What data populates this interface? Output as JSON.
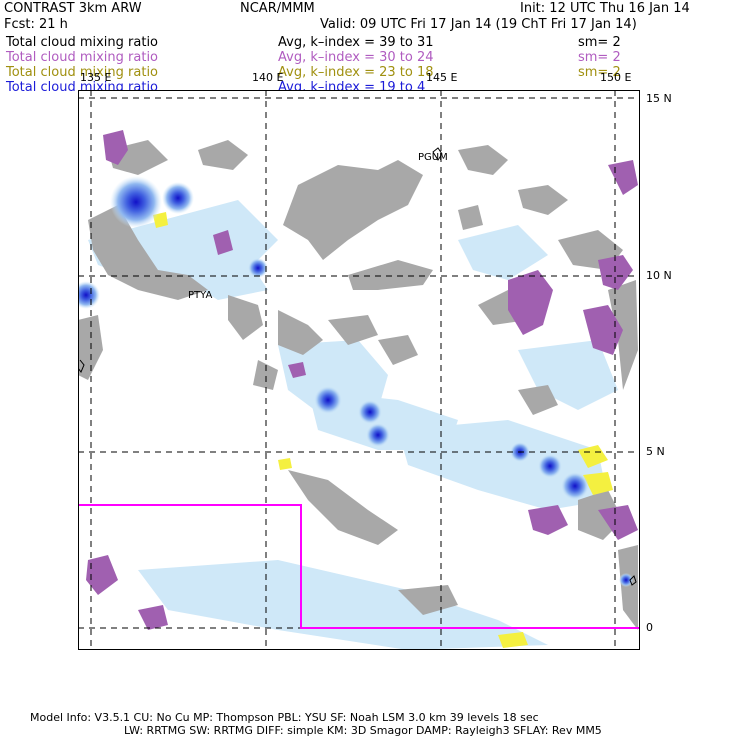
{
  "header": {
    "model": "CONTRAST  3km ARW",
    "center": "NCAR/MMM",
    "init": "Init: 12 UTC Thu 16 Jan 14",
    "fcst": "Fcst:    21 h",
    "valid": "Valid: 09 UTC Fri 17 Jan 14 (19 ChT Fri 17 Jan 14)"
  },
  "fields": [
    {
      "name": "Total cloud mixing ratio",
      "avg": "Avg, k–index =   39  to   31",
      "sm": "sm= 2",
      "color": "#000000"
    },
    {
      "name": "Total cloud mixing ratio",
      "avg": "Avg, k–index =   30  to   24",
      "sm": "sm= 2",
      "color": "#b05cc0"
    },
    {
      "name": "Total cloud mixing ratio",
      "avg": "Avg, k–index =   23  to   18",
      "sm": "sm= 2",
      "color": "#a09010"
    },
    {
      "name": "Total cloud mixing ratio",
      "avg": "Avg, k–index =   19  to    4",
      "sm": "",
      "color": "#1c1cd8"
    }
  ],
  "map": {
    "lon_labels": [
      "135 E",
      "140 E",
      "145 E",
      "150 E"
    ],
    "lat_labels": [
      "15 N",
      "10 N",
      "5 N",
      "0"
    ],
    "place_labels": [
      "PGUM",
      "PTYA"
    ],
    "colors": {
      "grey_cloud": "#a8a8a8",
      "purple_cloud": "#a060b0",
      "light_blue_cloud": "#cfe8f8",
      "blue_core": "#1c1cd0",
      "yellow_cloud": "#f4f040",
      "inner_domain_box": "#ff00ff"
    }
  },
  "footer": {
    "line1": "Model Info: V3.5.1     CU: No Cu     MP: Thompson     PBL: YSU      SF: Noah LSM     3.0 km   39 levels   18 sec",
    "line2": "LW: RRTMG    SW: RRTMG   DIFF: simple KM: 3D Smagor DAMP: Rayleigh3   SFLAY: Rev MM5"
  }
}
